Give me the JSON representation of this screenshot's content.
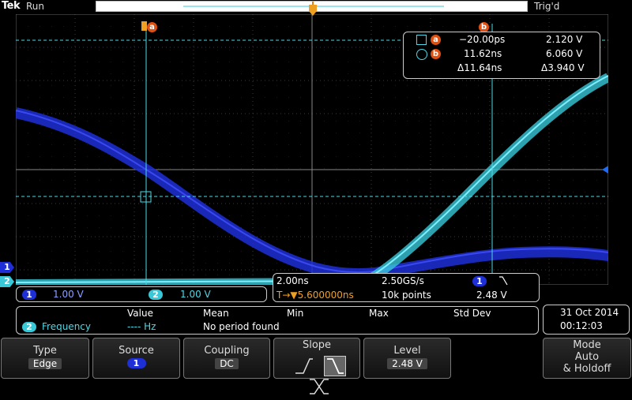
{
  "status": {
    "brand": "Tek",
    "run_state": "Run",
    "trigger_state": "Trig'd"
  },
  "colors": {
    "ch1": "#1e2fd8",
    "ch2": "#38c8d8",
    "cursor": "#4dd8e6",
    "marker": "#e05010",
    "trigger": "#f0a020"
  },
  "markers": {
    "trigger": "T",
    "cursor_a": "a",
    "cursor_b": "b"
  },
  "cursors": {
    "a": {
      "label": "a",
      "time": "−20.00ps",
      "volt": "2.120 V"
    },
    "b": {
      "label": "b",
      "time": "11.62ns",
      "volt": "6.060 V"
    },
    "delta": {
      "time": "Δ11.64ns",
      "volt": "Δ3.940 V"
    }
  },
  "channels": {
    "ch1": {
      "num": "1",
      "scale": "1.00 V"
    },
    "ch2": {
      "num": "2",
      "scale": "1.00 V"
    }
  },
  "timebase": {
    "scale": "2.00ns",
    "sample_rate": "2.50GS/s",
    "trigger_delay": "T→▼5.600000ns",
    "record_length": "10k points",
    "trig_channel": "1",
    "trig_slope_icon": "falling-edge-icon",
    "trig_level": "2.48 V"
  },
  "measurement": {
    "headers": [
      "Value",
      "Mean",
      "Min",
      "Max",
      "Std Dev"
    ],
    "channel": "2",
    "name": "Frequency",
    "value": "---- Hz",
    "status": "No period found"
  },
  "datetime": {
    "date": "31 Oct  2014",
    "time": "00:12:03"
  },
  "softkeys": [
    {
      "title": "Type",
      "value": "Edge"
    },
    {
      "title": "Source",
      "value": "1"
    },
    {
      "title": "Coupling",
      "value": "DC"
    },
    {
      "title": "Slope",
      "value": ""
    },
    {
      "title": "Level",
      "value": "2.48 V"
    },
    {
      "title": "Mode",
      "value": "Auto",
      "value2": "& Holdoff"
    }
  ]
}
